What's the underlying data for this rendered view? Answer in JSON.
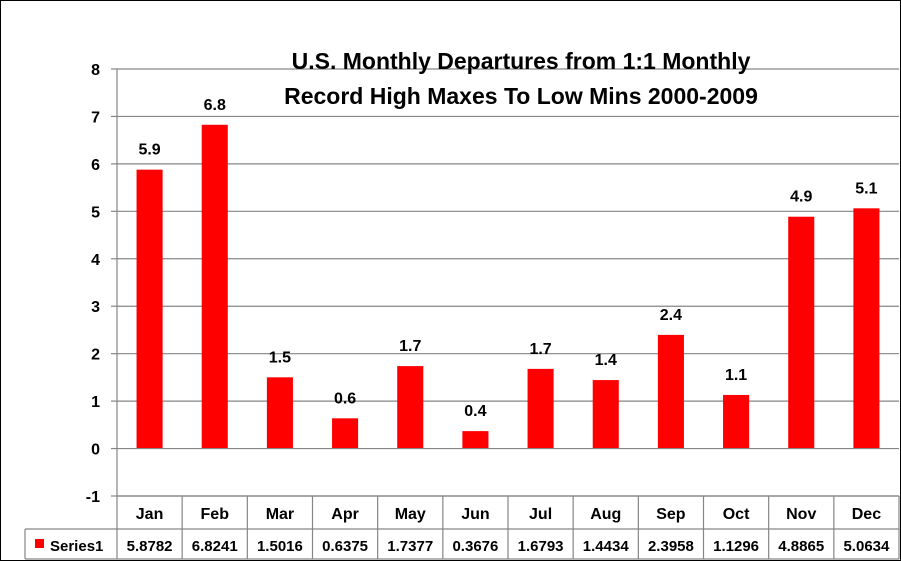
{
  "chart_data": {
    "type": "bar",
    "title_lines": [
      "U.S. Monthly Departures from 1:1 Monthly",
      "Record High Maxes To Low Mins 2000-2009"
    ],
    "categories": [
      "Jan",
      "Feb",
      "Mar",
      "Apr",
      "May",
      "Jun",
      "Jul",
      "Aug",
      "Sep",
      "Oct",
      "Nov",
      "Dec"
    ],
    "series": [
      {
        "name": "Series1",
        "color": "#FF0000",
        "values": [
          5.8782,
          6.8241,
          1.5016,
          0.6375,
          1.7377,
          0.3676,
          1.6793,
          1.4434,
          2.3958,
          1.1296,
          4.8865,
          5.0634
        ],
        "value_labels": [
          "5.9",
          "6.8",
          "1.5",
          "0.6",
          "1.7",
          "0.4",
          "1.7",
          "1.4",
          "2.4",
          "1.1",
          "4.9",
          "5.1"
        ],
        "table_values": [
          "5.8782",
          "6.8241",
          "1.5016",
          "0.6375",
          "1.7377",
          "0.3676",
          "1.6793",
          "1.4434",
          "2.3958",
          "1.1296",
          "4.8865",
          "5.0634"
        ]
      }
    ],
    "ylim": [
      -1,
      8
    ],
    "yticks": [
      "8",
      "7",
      "6",
      "5",
      "4",
      "3",
      "2",
      "1",
      "0",
      "-1"
    ],
    "grid": true,
    "data_table": true,
    "legend": "data-table"
  }
}
